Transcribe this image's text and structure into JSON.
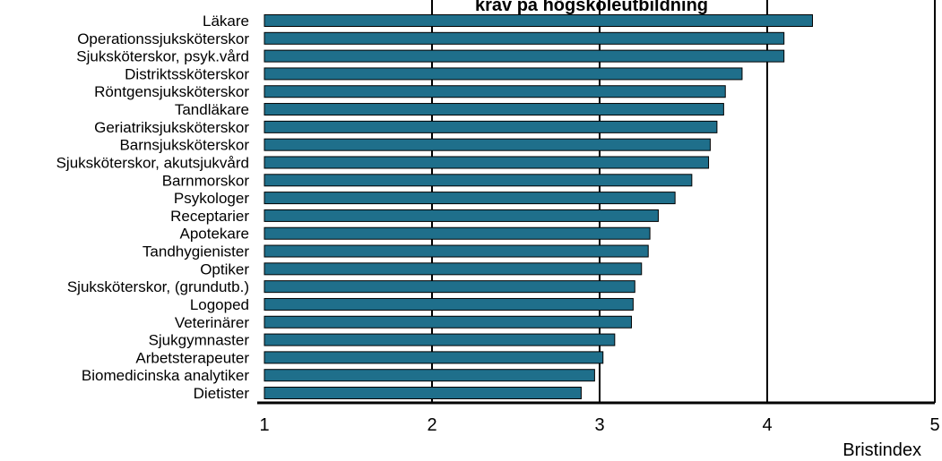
{
  "chart_data": {
    "type": "bar",
    "orientation": "horizontal",
    "title": "krav på högskoleutbildning",
    "xlabel": "Bristindex",
    "ylabel": "",
    "xlim": [
      1,
      5
    ],
    "xticks": [
      "1",
      "2",
      "3",
      "4",
      "5"
    ],
    "grid": "vertical",
    "legend": "none",
    "bar_color": "#1f6f8b",
    "categories": [
      "Läkare",
      "Operationssjuksköterskor",
      "Sjuksköterskor, psyk.vård",
      "Distriktssköterskor",
      "Röntgensjuksköterskor",
      "Tandläkare",
      "Geriatriksjuksköterskor",
      "Barnsjuksköterskor",
      "Sjuksköterskor, akutsjukvård",
      "Barnmorskor",
      "Psykologer",
      "Receptarier",
      "Apotekare",
      "Tandhygienister",
      "Optiker",
      "Sjuksköterskor, (grundutb.)",
      "Logoped",
      "Veterinärer",
      "Sjukgymnaster",
      "Arbetsterapeuter",
      "Biomedicinska analytiker",
      "Dietister"
    ],
    "values": [
      4.27,
      4.1,
      4.1,
      3.85,
      3.75,
      3.74,
      3.7,
      3.66,
      3.65,
      3.55,
      3.45,
      3.35,
      3.3,
      3.29,
      3.25,
      3.21,
      3.2,
      3.19,
      3.09,
      3.02,
      2.97,
      2.89
    ]
  }
}
